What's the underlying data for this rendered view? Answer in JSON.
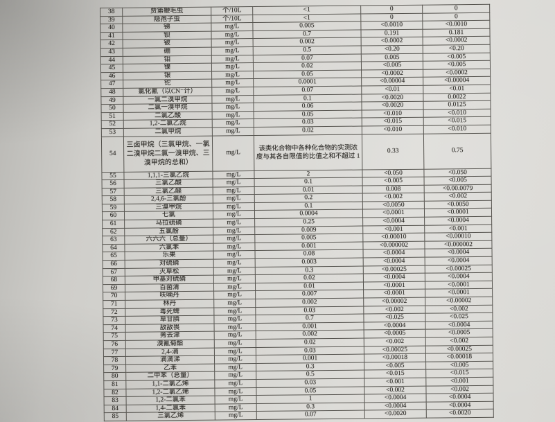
{
  "document": {
    "kind_note": "photographed water-quality test report table, items 38-85"
  },
  "colors": {
    "paper": "#d8d7d3",
    "paper_dark": "#b7b6b2",
    "paper_light": "#deddd9",
    "grid_line": "#55534e",
    "text": "#2e2c28"
  },
  "table": {
    "rows": [
      {
        "no": "38",
        "name": "贾第鞭毛虫",
        "unit": "个/10L",
        "limit": "<1",
        "v1": "0",
        "v2": "0"
      },
      {
        "no": "39",
        "name": "隐孢子虫",
        "unit": "个/10L",
        "limit": "<1",
        "v1": "0",
        "v2": "0"
      },
      {
        "no": "40",
        "name": "锑",
        "unit": "mg/L",
        "limit": "0.005",
        "v1": "<0.0010",
        "v2": "<0.0010"
      },
      {
        "no": "41",
        "name": "钡",
        "unit": "mg/L",
        "limit": "0.7",
        "v1": "0.191",
        "v2": "0.181"
      },
      {
        "no": "42",
        "name": "铍",
        "unit": "mg/L",
        "limit": "0.002",
        "v1": "<0.0002",
        "v2": "<0.0002"
      },
      {
        "no": "43",
        "name": "硼",
        "unit": "mg/L",
        "limit": "0.5",
        "v1": "<0.20",
        "v2": "<0.20"
      },
      {
        "no": "44",
        "name": "钼",
        "unit": "mg/L",
        "limit": "0.07",
        "v1": "0.005",
        "v2": "<0.005"
      },
      {
        "no": "45",
        "name": "镍",
        "unit": "mg/L",
        "limit": "0.02",
        "v1": "<0.005",
        "v2": "<0.005"
      },
      {
        "no": "46",
        "name": "银",
        "unit": "mg/L",
        "limit": "0.05",
        "v1": "<0.0002",
        "v2": "<0.0002"
      },
      {
        "no": "47",
        "name": "铊",
        "unit": "mg/L",
        "limit": "0.0001",
        "v1": "<0.00004",
        "v2": "<0.00004"
      },
      {
        "no": "48",
        "name": "氯化氰（以CN⁻计）",
        "unit": "mg/L",
        "limit": "0.07",
        "v1": "<0.01",
        "v2": "<0.01"
      },
      {
        "no": "49",
        "name": "一氯二溴甲烷",
        "unit": "mg/L",
        "limit": "0.1",
        "v1": "<0.0020",
        "v2": "0.0022"
      },
      {
        "no": "50",
        "name": "二氯一溴甲烷",
        "unit": "mg/L",
        "limit": "0.06",
        "v1": "<0.0020",
        "v2": "0.0125"
      },
      {
        "no": "51",
        "name": "二氯乙酸",
        "unit": "mg/L",
        "limit": "0.05",
        "v1": "<0.010",
        "v2": "<0.010"
      },
      {
        "no": "52",
        "name": "1,2-二氯乙烷",
        "unit": "mg/L",
        "limit": "0.03",
        "v1": "<0.015",
        "v2": "<0.015"
      },
      {
        "no": "53",
        "name": "二氯甲烷",
        "unit": "mg/L",
        "limit": "0.02",
        "v1": "<0.010",
        "v2": "<0.010"
      },
      {
        "no": "54",
        "name": "三卤甲烷（三氯甲烷、一氯二溴甲烷二氯一溴甲烷、三溴甲烷的总和）",
        "unit": "mg/L",
        "limit": "该类化合物中各种化合物的实测浓度与其各自限值的比值之和不超过 1",
        "v1": "0.33",
        "v2": "0.75",
        "tall": true
      },
      {
        "no": "55",
        "name": "1,1,1-三氯乙烷",
        "unit": "mg/L",
        "limit": "2",
        "v1": "<0.050",
        "v2": "<0.050"
      },
      {
        "no": "56",
        "name": "三氯乙酸",
        "unit": "mg/L",
        "limit": "0.1",
        "v1": "<0.005",
        "v2": "<0.005"
      },
      {
        "no": "57",
        "name": "三氯乙醛",
        "unit": "mg/L",
        "limit": "0.01",
        "v1": "0.008",
        "v2": "<0.00.0079"
      },
      {
        "no": "58",
        "name": "2,4,6-三氯酚",
        "unit": "mg/L",
        "limit": "0.2",
        "v1": "<0.002",
        "v2": "<0.002"
      },
      {
        "no": "59",
        "name": "三溴甲烷",
        "unit": "mg/L",
        "limit": "0.1",
        "v1": "<0.0050",
        "v2": "<0.0050"
      },
      {
        "no": "60",
        "name": "七氯",
        "unit": "mg/L",
        "limit": "0.0004",
        "v1": "<0.0001",
        "v2": "<0.0001"
      },
      {
        "no": "61",
        "name": "马拉硫磷",
        "unit": "mg/L",
        "limit": "0.25",
        "v1": "<0.0004",
        "v2": "<0.0004"
      },
      {
        "no": "62",
        "name": "五氯酚",
        "unit": "mg/L",
        "limit": "0.009",
        "v1": "<0.001",
        "v2": "<0.001"
      },
      {
        "no": "63",
        "name": "六六六（总量）",
        "unit": "mg/L",
        "limit": "0.005",
        "v1": "<0.00010",
        "v2": "<0.00010"
      },
      {
        "no": "64",
        "name": "六氯苯",
        "unit": "mg/L",
        "limit": "0.001",
        "v1": "<0.000002",
        "v2": "<0.000002"
      },
      {
        "no": "65",
        "name": "乐果",
        "unit": "mg/L",
        "limit": "0.08",
        "v1": "<0.0004",
        "v2": "<0.0004"
      },
      {
        "no": "66",
        "name": "对硫磷",
        "unit": "mg/L",
        "limit": "0.003",
        "v1": "<0.0004",
        "v2": "<0.0004"
      },
      {
        "no": "67",
        "name": "灭草松",
        "unit": "mg/L",
        "limit": "0.3",
        "v1": "<0.00025",
        "v2": "<0.00025"
      },
      {
        "no": "68",
        "name": "甲基对硫磷",
        "unit": "mg/L",
        "limit": "0.02",
        "v1": "<0.0004",
        "v2": "<0.0004"
      },
      {
        "no": "69",
        "name": "百菌清",
        "unit": "mg/L",
        "limit": "0.01",
        "v1": "<0.0001",
        "v2": "<0.0001"
      },
      {
        "no": "70",
        "name": "呋喃丹",
        "unit": "mg/L",
        "limit": "0.007",
        "v1": "<0.0001",
        "v2": "<0.0001"
      },
      {
        "no": "71",
        "name": "林丹",
        "unit": "mg/L",
        "limit": "0.002",
        "v1": "<0.00002",
        "v2": "<0.00002"
      },
      {
        "no": "72",
        "name": "毒死蜱",
        "unit": "mg/L",
        "limit": "0.03",
        "v1": "<0.002",
        "v2": "<0.002"
      },
      {
        "no": "73",
        "name": "草甘膦",
        "unit": "mg/L",
        "limit": "0.7",
        "v1": "<0.025",
        "v2": "<0.025"
      },
      {
        "no": "74",
        "name": "敌敌畏",
        "unit": "mg/L",
        "limit": "0.001",
        "v1": "<0.0004",
        "v2": "<0.0004"
      },
      {
        "no": "75",
        "name": "莠去津",
        "unit": "mg/L",
        "limit": "0.002",
        "v1": "<0.0005",
        "v2": "<0.0005"
      },
      {
        "no": "76",
        "name": "溴氰菊酯",
        "unit": "mg/L",
        "limit": "0.02",
        "v1": "<0.002",
        "v2": "<0.002"
      },
      {
        "no": "77",
        "name": "2,4-滴",
        "unit": "mg/L",
        "limit": "0.03",
        "v1": "<0.00025",
        "v2": "<0.00025"
      },
      {
        "no": "78",
        "name": "滴滴涕",
        "unit": "mg/L",
        "limit": "0.001",
        "v1": "<0.00018",
        "v2": "<0.00018"
      },
      {
        "no": "79",
        "name": "乙苯",
        "unit": "mg/L",
        "limit": "0.3",
        "v1": "<0.005",
        "v2": "<0.005"
      },
      {
        "no": "80",
        "name": "二甲苯（总量）",
        "unit": "mg/L",
        "limit": "0.5",
        "v1": "<0.015",
        "v2": "<0.015"
      },
      {
        "no": "81",
        "name": "1,1-二氯乙烯",
        "unit": "mg/L",
        "limit": "0.03",
        "v1": "<0.001",
        "v2": "<0.001"
      },
      {
        "no": "82",
        "name": "1,2-二氯乙烯",
        "unit": "mg/L",
        "limit": "0.05",
        "v1": "<0.002",
        "v2": "<0.002"
      },
      {
        "no": "83",
        "name": "1,2-二氯苯",
        "unit": "mg/L",
        "limit": "1",
        "v1": "<0.0004",
        "v2": "<0.0004"
      },
      {
        "no": "84",
        "name": "1,4-二氯苯",
        "unit": "mg/L",
        "limit": "0.3",
        "v1": "<0.0004",
        "v2": "<0.0004"
      },
      {
        "no": "85",
        "name": "三氯乙烯",
        "unit": "mg/L",
        "limit": "0.07",
        "v1": "<0.0020",
        "v2": "<0.0020"
      }
    ]
  }
}
